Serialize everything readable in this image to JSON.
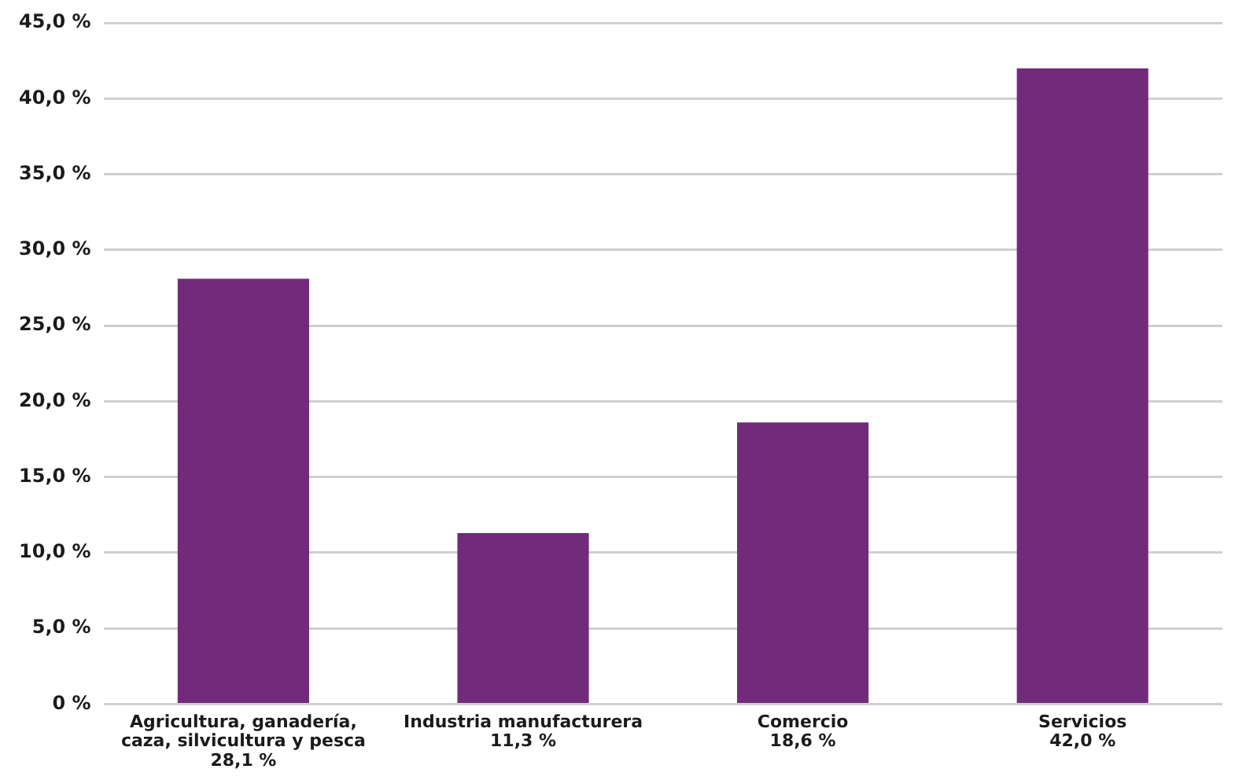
{
  "chart_data": {
    "type": "bar",
    "categories": [
      "Agricultura, ganadería, caza, silvicultura y pesca",
      "Industria manufacturera",
      "Comercio",
      "Servicios"
    ],
    "values": [
      28.1,
      11.3,
      18.6,
      42.0
    ],
    "value_labels": [
      "28,1 %",
      "11,3 %",
      "18,6 %",
      "42,0 %"
    ],
    "color": "#722a7a",
    "ylim": [
      0,
      45
    ],
    "yticks": [
      {
        "value": 0,
        "label": "0 %"
      },
      {
        "value": 5,
        "label": "5,0 %"
      },
      {
        "value": 10,
        "label": "10,0 %"
      },
      {
        "value": 15,
        "label": "15,0 %"
      },
      {
        "value": 20,
        "label": "20,0 %"
      },
      {
        "value": 25,
        "label": "25,0 %"
      },
      {
        "value": 30,
        "label": "30,0 %"
      },
      {
        "value": 35,
        "label": "35,0 %"
      },
      {
        "value": 40,
        "label": "40,0 %"
      },
      {
        "value": 45,
        "label": "45,0 %"
      }
    ],
    "grid": "y",
    "legend": false
  }
}
